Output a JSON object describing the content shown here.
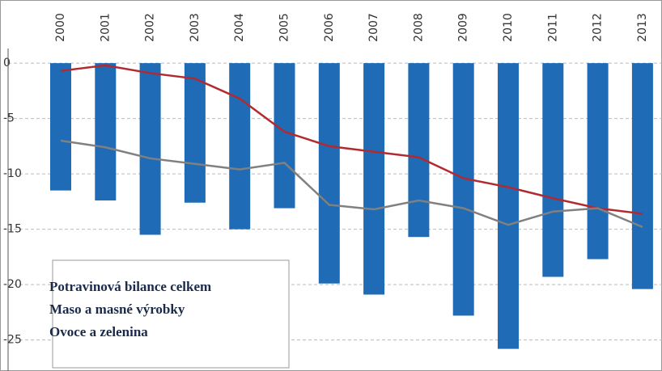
{
  "chart_data": {
    "type": "bar",
    "categories": [
      "2000",
      "2001",
      "2002",
      "2003",
      "2004",
      "2005",
      "2006",
      "2007",
      "2008",
      "2009",
      "2010",
      "2011",
      "2012",
      "2013"
    ],
    "series": [
      {
        "name": "Potravinová bilance celkem",
        "type": "bar",
        "color": "#1f6bb5",
        "values": [
          -11.5,
          -12.4,
          -15.5,
          -12.6,
          -15.0,
          -13.1,
          -19.9,
          -20.9,
          -15.7,
          -22.8,
          -25.8,
          -19.3,
          -17.7,
          -20.4
        ]
      },
      {
        "name": "Maso a masné výrobky",
        "type": "line",
        "color": "#b22a30",
        "values": [
          -0.7,
          -0.2,
          -0.9,
          -1.4,
          -3.2,
          -6.2,
          -7.5,
          -8.0,
          -8.5,
          -10.4,
          -11.2,
          -12.2,
          -13.1,
          -13.6
        ]
      },
      {
        "name": "Ovoce a zelenina",
        "type": "line",
        "color": "#808080",
        "values": [
          -7.0,
          -7.6,
          -8.6,
          -9.1,
          -9.6,
          -9.0,
          -12.8,
          -13.2,
          -12.4,
          -13.1,
          -14.6,
          -13.4,
          -13.1,
          -14.8
        ]
      }
    ],
    "ylim": [
      -27.8,
      5.7
    ],
    "yticks": [
      0,
      -5,
      -10,
      -15,
      -20,
      -25
    ],
    "grid": true,
    "legend": "lower left"
  }
}
